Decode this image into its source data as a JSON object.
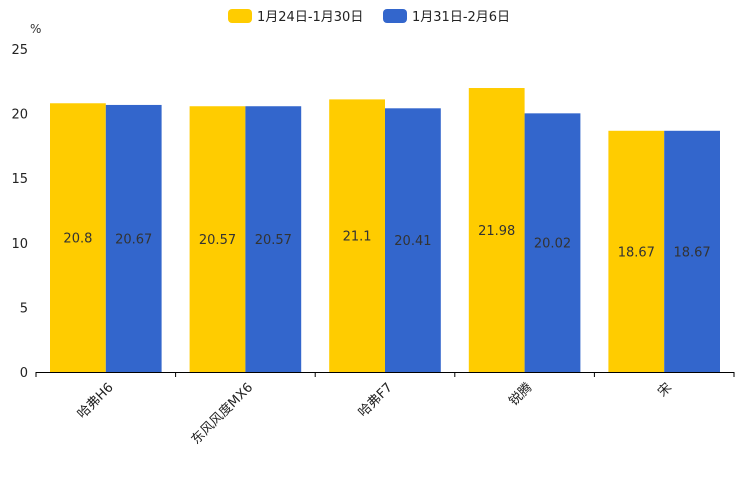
{
  "chart_data": {
    "type": "bar",
    "title": "",
    "xlabel": "",
    "ylabel": "%",
    "ylim": [
      0,
      25
    ],
    "yticks": [
      0,
      5,
      10,
      15,
      20,
      25
    ],
    "categories": [
      "哈弗H6",
      "东风风度MX6",
      "哈弗F7",
      "锐腾",
      "宋"
    ],
    "series": [
      {
        "name": "1月24日-1月30日",
        "color": "#FFCC00",
        "values": [
          20.8,
          20.57,
          21.1,
          21.98,
          18.67
        ],
        "labels": [
          "20.8",
          "20.57",
          "21.1",
          "21.98",
          "18.67"
        ]
      },
      {
        "name": "1月31日-2月6日",
        "color": "#3366CC",
        "values": [
          20.67,
          20.57,
          20.41,
          20.02,
          18.67
        ],
        "labels": [
          "20.67",
          "20.57",
          "20.41",
          "20.02",
          "18.67"
        ]
      }
    ],
    "legend_position": "top-center",
    "grid": false
  }
}
